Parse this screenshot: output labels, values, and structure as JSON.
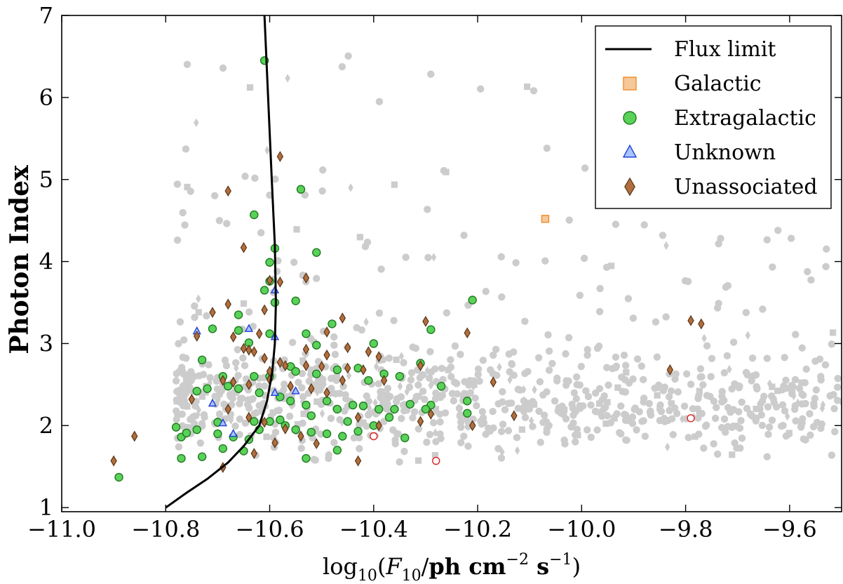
{
  "chart_data": {
    "type": "scatter",
    "title": "",
    "xlabel_parts": {
      "pre": "log",
      "sub": "10",
      "open": "(",
      "var": "F",
      "var_sub": "10",
      "slash": "/",
      "units": "ph cm",
      "exp1": "−2",
      "mid": " s",
      "exp2": "−1",
      "close": ")"
    },
    "ylabel": "Photon Index",
    "xlim": [
      -11.0,
      -9.5
    ],
    "ylim": [
      0.95,
      7.0
    ],
    "x_ticks": [
      -11.0,
      -10.8,
      -10.6,
      -10.4,
      -10.2,
      -10.0,
      -9.8,
      -9.6
    ],
    "x_tick_labels": [
      "−11.0",
      "−10.8",
      "−10.6",
      "−10.4",
      "−10.2",
      "−10.0",
      "−9.8",
      "−9.6"
    ],
    "y_ticks": [
      1,
      2,
      3,
      4,
      5,
      6,
      7
    ],
    "y_tick_labels": [
      "1",
      "2",
      "3",
      "4",
      "5",
      "6",
      "7"
    ],
    "grid": false,
    "legend_position": "top-right",
    "legend": [
      {
        "label": "Flux limit",
        "marker": "line",
        "color": "#000000"
      },
      {
        "label": "Galactic",
        "marker": "square",
        "color": "#f5c89a",
        "edge": "#f08c28"
      },
      {
        "label": "Extragalactic",
        "marker": "circle",
        "color": "#5ad25a",
        "edge": "#1f7a1f"
      },
      {
        "label": "Unknown",
        "marker": "triangle",
        "color": "#a9c4ff",
        "edge": "#1f3fd6"
      },
      {
        "label": "Unassociated",
        "marker": "diamond",
        "color": "#b06f3e",
        "edge": "#5a3416"
      }
    ],
    "background_color": "#cccccc",
    "flux_limit": {
      "name": "Flux limit",
      "x": [
        -10.8,
        -10.76,
        -10.72,
        -10.68,
        -10.65,
        -10.62,
        -10.605,
        -10.595,
        -10.59,
        -10.588,
        -10.59,
        -10.596,
        -10.603,
        -10.61
      ],
      "y": [
        1.0,
        1.18,
        1.35,
        1.55,
        1.75,
        2.0,
        2.3,
        2.65,
        3.0,
        3.5,
        4.2,
        5.0,
        6.0,
        7.0
      ]
    },
    "series": [
      {
        "name": "Galactic",
        "marker": "square",
        "points": [
          [
            -10.07,
            4.52
          ]
        ]
      },
      {
        "name": "Galactic (red circles)",
        "marker": "red-circle",
        "points": [
          [
            -10.4,
            1.87
          ],
          [
            -10.28,
            1.57
          ],
          [
            -9.79,
            2.09
          ]
        ]
      },
      {
        "name": "Extragalactic",
        "marker": "circle",
        "points": [
          [
            -10.61,
            6.45
          ],
          [
            -10.63,
            4.57
          ],
          [
            -10.54,
            4.88
          ],
          [
            -10.59,
            4.16
          ],
          [
            -10.6,
            3.99
          ],
          [
            -10.6,
            3.76
          ],
          [
            -10.51,
            4.11
          ],
          [
            -10.55,
            3.52
          ],
          [
            -10.59,
            3.5
          ],
          [
            -10.61,
            3.65
          ],
          [
            -10.66,
            3.35
          ],
          [
            -10.66,
            3.16
          ],
          [
            -10.71,
            3.18
          ],
          [
            -10.73,
            2.8
          ],
          [
            -10.64,
            3.01
          ],
          [
            -10.6,
            3.12
          ],
          [
            -10.53,
            3.12
          ],
          [
            -10.51,
            2.98
          ],
          [
            -10.48,
            3.24
          ],
          [
            -10.4,
            3.0
          ],
          [
            -10.29,
            3.17
          ],
          [
            -10.21,
            3.53
          ],
          [
            -10.69,
            2.6
          ],
          [
            -10.63,
            2.6
          ],
          [
            -10.6,
            2.6
          ],
          [
            -10.56,
            2.72
          ],
          [
            -10.55,
            2.66
          ],
          [
            -10.51,
            2.63
          ],
          [
            -10.47,
            2.68
          ],
          [
            -10.43,
            2.7
          ],
          [
            -10.41,
            2.55
          ],
          [
            -10.38,
            2.63
          ],
          [
            -10.35,
            2.6
          ],
          [
            -10.31,
            2.76
          ],
          [
            -10.27,
            2.48
          ],
          [
            -10.74,
            2.42
          ],
          [
            -10.72,
            2.45
          ],
          [
            -10.68,
            2.48
          ],
          [
            -10.66,
            2.45
          ],
          [
            -10.62,
            2.4
          ],
          [
            -10.58,
            2.35
          ],
          [
            -10.56,
            2.3
          ],
          [
            -10.53,
            2.25
          ],
          [
            -10.49,
            2.3
          ],
          [
            -10.47,
            2.2
          ],
          [
            -10.44,
            2.25
          ],
          [
            -10.42,
            2.24
          ],
          [
            -10.39,
            2.2
          ],
          [
            -10.36,
            2.2
          ],
          [
            -10.33,
            2.26
          ],
          [
            -10.29,
            2.25
          ],
          [
            -10.22,
            2.3
          ],
          [
            -10.78,
            1.98
          ],
          [
            -10.77,
            1.86
          ],
          [
            -10.76,
            1.91
          ],
          [
            -10.74,
            1.95
          ],
          [
            -10.7,
            1.9
          ],
          [
            -10.67,
            1.86
          ],
          [
            -10.64,
            1.83
          ],
          [
            -10.62,
            1.95
          ],
          [
            -10.6,
            2.05
          ],
          [
            -10.57,
            2.0
          ],
          [
            -10.55,
            1.95
          ],
          [
            -10.52,
            1.92
          ],
          [
            -10.49,
            1.9
          ],
          [
            -10.46,
            1.87
          ],
          [
            -10.43,
            1.93
          ],
          [
            -10.4,
            2.0
          ],
          [
            -10.37,
            2.1
          ],
          [
            -10.34,
            1.85
          ],
          [
            -10.3,
            2.2
          ],
          [
            -10.22,
            2.15
          ],
          [
            -10.77,
            1.6
          ],
          [
            -10.73,
            1.62
          ],
          [
            -10.69,
            1.72
          ],
          [
            -10.65,
            1.69
          ],
          [
            -10.53,
            1.6
          ],
          [
            -10.47,
            1.7
          ],
          [
            -10.89,
            1.37
          ],
          [
            -10.58,
            2.07
          ],
          [
            -10.63,
            2.05
          ],
          [
            -10.7,
            2.04
          ],
          [
            -10.52,
            2.12
          ],
          [
            -10.45,
            2.05
          ]
        ]
      },
      {
        "name": "Unknown",
        "marker": "triangle",
        "points": [
          [
            -10.59,
            3.65
          ],
          [
            -10.74,
            3.15
          ],
          [
            -10.64,
            3.18
          ],
          [
            -10.59,
            3.08
          ],
          [
            -10.59,
            2.4
          ],
          [
            -10.55,
            2.42
          ],
          [
            -10.71,
            2.27
          ],
          [
            -10.69,
            2.03
          ],
          [
            -10.67,
            1.9
          ]
        ]
      },
      {
        "name": "Unassociated",
        "marker": "diamond",
        "points": [
          [
            -10.58,
            5.28
          ],
          [
            -10.68,
            4.86
          ],
          [
            -10.65,
            4.17
          ],
          [
            -10.6,
            3.77
          ],
          [
            -10.58,
            3.75
          ],
          [
            -10.53,
            3.8
          ],
          [
            -10.68,
            3.48
          ],
          [
            -10.71,
            3.38
          ],
          [
            -10.61,
            3.41
          ],
          [
            -10.49,
            3.14
          ],
          [
            -10.46,
            3.31
          ],
          [
            -10.3,
            3.27
          ],
          [
            -10.22,
            3.13
          ],
          [
            -9.79,
            3.28
          ],
          [
            -9.77,
            3.24
          ],
          [
            -10.74,
            3.09
          ],
          [
            -10.67,
            3.08
          ],
          [
            -10.62,
            3.12
          ],
          [
            -10.53,
            2.93
          ],
          [
            -10.49,
            2.86
          ],
          [
            -10.45,
            2.95
          ],
          [
            -10.41,
            2.9
          ],
          [
            -10.39,
            2.84
          ],
          [
            -10.31,
            2.73
          ],
          [
            -10.65,
            2.94
          ],
          [
            -10.63,
            2.9
          ],
          [
            -10.61,
            2.82
          ],
          [
            -10.58,
            2.77
          ],
          [
            -10.57,
            2.73
          ],
          [
            -10.53,
            2.73
          ],
          [
            -10.5,
            2.72
          ],
          [
            -10.45,
            2.7
          ],
          [
            -10.42,
            2.68
          ],
          [
            -10.69,
            2.55
          ],
          [
            -10.67,
            2.53
          ],
          [
            -10.64,
            2.5
          ],
          [
            -10.6,
            2.56
          ],
          [
            -10.56,
            2.48
          ],
          [
            -10.52,
            2.45
          ],
          [
            -10.49,
            2.4
          ],
          [
            -10.46,
            2.55
          ],
          [
            -10.38,
            2.55
          ],
          [
            -10.17,
            2.53
          ],
          [
            -9.83,
            2.68
          ],
          [
            -10.75,
            2.32
          ],
          [
            -10.68,
            2.2
          ],
          [
            -10.64,
            2.1
          ],
          [
            -10.61,
            2.04
          ],
          [
            -10.57,
            1.96
          ],
          [
            -10.54,
            1.87
          ],
          [
            -10.51,
            1.78
          ],
          [
            -10.43,
            2.1
          ],
          [
            -10.39,
            2.0
          ],
          [
            -10.31,
            2.05
          ],
          [
            -10.29,
            2.14
          ],
          [
            -10.21,
            2.0
          ],
          [
            -10.13,
            2.12
          ],
          [
            -10.9,
            1.57
          ],
          [
            -10.86,
            1.87
          ],
          [
            -10.69,
            1.49
          ],
          [
            -10.63,
            1.66
          ],
          [
            -10.59,
            1.79
          ],
          [
            -10.43,
            1.57
          ],
          [
            -10.64,
            2.92
          ],
          [
            -10.6,
            2.66
          ]
        ]
      }
    ]
  }
}
